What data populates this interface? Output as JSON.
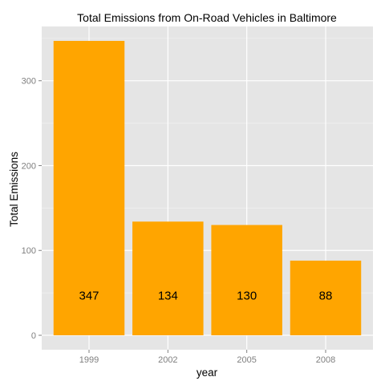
{
  "chart_data": {
    "type": "bar",
    "title": "Total Emissions from On-Road Vehicles in Baltimore",
    "xlabel": "year",
    "ylabel": "Total Emissions",
    "categories": [
      "1999",
      "2002",
      "2005",
      "2008"
    ],
    "values": [
      347,
      134,
      130,
      88
    ],
    "data_labels": [
      "347",
      "134",
      "130",
      "88"
    ],
    "ylim": [
      -17,
      364
    ],
    "yticks": [
      0,
      100,
      200,
      300
    ],
    "ytick_labels": [
      "0",
      "100",
      "200",
      "300"
    ],
    "grid": true,
    "legend": "none",
    "colors": {
      "bar": "#FFA500",
      "panel": "#E5E5E5",
      "grid_major": "#FFFFFF",
      "grid_minor": "#F2F2F2",
      "tick_label": "#7F7F7F"
    }
  }
}
